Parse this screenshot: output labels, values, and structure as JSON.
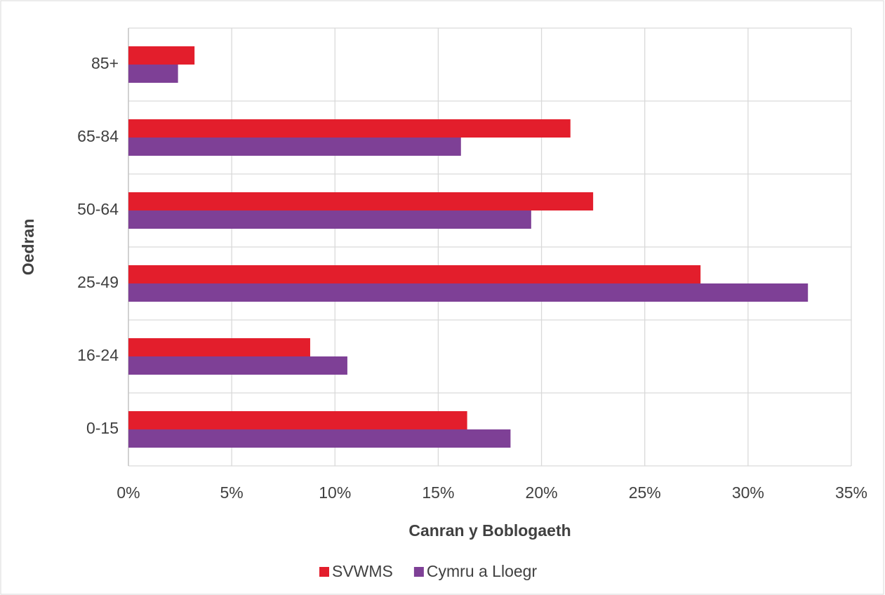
{
  "chart_data": {
    "type": "hbar",
    "categories": [
      "85+",
      "65-84",
      "50-64",
      "25-49",
      "16-24",
      "0-15"
    ],
    "series": [
      {
        "name": "SVWMS",
        "color": "#e31e2c",
        "values": [
          3.2,
          21.4,
          22.5,
          27.7,
          8.8,
          16.4
        ]
      },
      {
        "name": "Cymru a Lloegr",
        "color": "#7e4096",
        "values": [
          2.4,
          16.1,
          19.5,
          32.9,
          10.6,
          18.5
        ]
      }
    ],
    "xlim": [
      0,
      35
    ],
    "xticks": [
      {
        "value": 0,
        "label": "0%"
      },
      {
        "value": 5,
        "label": "5%"
      },
      {
        "value": 10,
        "label": "10%"
      },
      {
        "value": 15,
        "label": "15%"
      },
      {
        "value": 20,
        "label": "20%"
      },
      {
        "value": 25,
        "label": "25%"
      },
      {
        "value": 30,
        "label": "30%"
      },
      {
        "value": 35,
        "label": "35%"
      }
    ],
    "xlabel": "Canran y Boblogaeth",
    "ylabel": "Oedran",
    "grid": true,
    "legend": "bottom"
  }
}
